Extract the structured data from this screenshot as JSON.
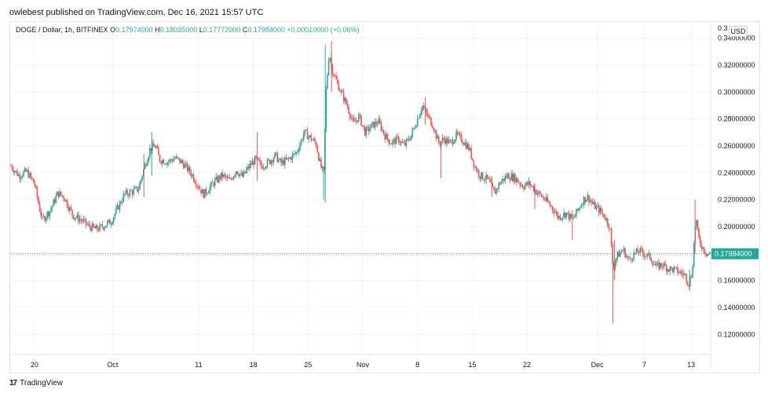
{
  "header": {
    "published": "owlebest published on TradingView.com, Dec 16, 2021 15:57 UTC"
  },
  "legend": {
    "symbol": "DOGE / Dollar, 1h, BITFINEX",
    "open_label": "O",
    "open": "0.17974000",
    "high_label": "H",
    "high": "0.18035000",
    "low_label": "L",
    "low": "0.17772000",
    "close_label": "C",
    "close": "0.17984000",
    "change": "+0.00010000 (+0.06%)"
  },
  "currency_button": "USD",
  "footer": {
    "logo_mark": "17",
    "logo_text": "TradingView"
  },
  "colors": {
    "up": "#26a69a",
    "down": "#ef5350",
    "grid": "#f0f3fa",
    "last_price": "#26a69a"
  },
  "chart_data": {
    "type": "candlestick",
    "title": "DOGE / Dollar, 1h, BITFINEX",
    "ylim": [
      0.105,
      0.352
    ],
    "y_ticks": [
      "0.12000000",
      "0.14000000",
      "0.16000000",
      "0.18000000",
      "0.20000000",
      "0.22000000",
      "0.24000000",
      "0.26000000",
      "0.28000000",
      "0.30000000",
      "0.32000000",
      "0.34000000"
    ],
    "y_ticks_truncated_top": "0.3",
    "x_range_days": [
      0,
      88
    ],
    "x_ticks": [
      {
        "label": "20",
        "day": 3
      },
      {
        "label": "Oct",
        "day": 13
      },
      {
        "label": "11",
        "day": 24
      },
      {
        "label": "18",
        "day": 31
      },
      {
        "label": "25",
        "day": 38
      },
      {
        "label": "Nov",
        "day": 45
      },
      {
        "label": "8",
        "day": 52
      },
      {
        "label": "15",
        "day": 59
      },
      {
        "label": "22",
        "day": 66
      },
      {
        "label": "Dec",
        "day": 75
      },
      {
        "label": "7",
        "day": 81
      },
      {
        "label": "13",
        "day": 87
      }
    ],
    "last_price": 0.17984,
    "last_price_label": "0.17984000",
    "x_origin_date": "2021-09-17",
    "series_close": [
      [
        0,
        0.245
      ],
      [
        1,
        0.238
      ],
      [
        2,
        0.241
      ],
      [
        3,
        0.232
      ],
      [
        3.6,
        0.215
      ],
      [
        4,
        0.205
      ],
      [
        5,
        0.212
      ],
      [
        6,
        0.225
      ],
      [
        6.8,
        0.222
      ],
      [
        7.5,
        0.213
      ],
      [
        8,
        0.208
      ],
      [
        9,
        0.205
      ],
      [
        10,
        0.2
      ],
      [
        11,
        0.198
      ],
      [
        12,
        0.201
      ],
      [
        12.8,
        0.204
      ],
      [
        13.5,
        0.212
      ],
      [
        14.5,
        0.224
      ],
      [
        15.5,
        0.226
      ],
      [
        16.3,
        0.228
      ],
      [
        17,
        0.243
      ],
      [
        17.8,
        0.258
      ],
      [
        18.5,
        0.26
      ],
      [
        19,
        0.25
      ],
      [
        20,
        0.248
      ],
      [
        21,
        0.251
      ],
      [
        22,
        0.247
      ],
      [
        23,
        0.24
      ],
      [
        23.8,
        0.232
      ],
      [
        24.6,
        0.224
      ],
      [
        25.3,
        0.228
      ],
      [
        26,
        0.233
      ],
      [
        27,
        0.238
      ],
      [
        28,
        0.234
      ],
      [
        28.8,
        0.242
      ],
      [
        29.6,
        0.237
      ],
      [
        30.5,
        0.245
      ],
      [
        31.3,
        0.25
      ],
      [
        32,
        0.245
      ],
      [
        33,
        0.248
      ],
      [
        33.8,
        0.253
      ],
      [
        34.5,
        0.247
      ],
      [
        35.5,
        0.25
      ],
      [
        36.5,
        0.255
      ],
      [
        37,
        0.262
      ],
      [
        37.5,
        0.27
      ],
      [
        38.3,
        0.266
      ],
      [
        39,
        0.262
      ],
      [
        39.6,
        0.245
      ],
      [
        40,
        0.239
      ],
      [
        40.3,
        0.3
      ],
      [
        40.7,
        0.33
      ],
      [
        41,
        0.318
      ],
      [
        41.5,
        0.31
      ],
      [
        42.2,
        0.3
      ],
      [
        43,
        0.29
      ],
      [
        43.8,
        0.276
      ],
      [
        44.5,
        0.282
      ],
      [
        45.3,
        0.27
      ],
      [
        46.2,
        0.275
      ],
      [
        47,
        0.278
      ],
      [
        47.8,
        0.268
      ],
      [
        48.6,
        0.262
      ],
      [
        49.5,
        0.265
      ],
      [
        50.3,
        0.26
      ],
      [
        51.2,
        0.268
      ],
      [
        52,
        0.28
      ],
      [
        52.6,
        0.29
      ],
      [
        53.2,
        0.283
      ],
      [
        54,
        0.275
      ],
      [
        54.7,
        0.262
      ],
      [
        55.4,
        0.265
      ],
      [
        56.2,
        0.262
      ],
      [
        57,
        0.268
      ],
      [
        57.8,
        0.264
      ],
      [
        58.6,
        0.258
      ],
      [
        59.3,
        0.245
      ],
      [
        60,
        0.238
      ],
      [
        61,
        0.235
      ],
      [
        61.8,
        0.225
      ],
      [
        62.6,
        0.233
      ],
      [
        63.5,
        0.238
      ],
      [
        64.5,
        0.236
      ],
      [
        65.5,
        0.23
      ],
      [
        66.3,
        0.232
      ],
      [
        67.2,
        0.226
      ],
      [
        68,
        0.222
      ],
      [
        68.8,
        0.217
      ],
      [
        69.5,
        0.212
      ],
      [
        70,
        0.207
      ],
      [
        71,
        0.21
      ],
      [
        71.8,
        0.205
      ],
      [
        72.5,
        0.212
      ],
      [
        73.2,
        0.22
      ],
      [
        73.8,
        0.222
      ],
      [
        74.5,
        0.216
      ],
      [
        75.3,
        0.212
      ],
      [
        76,
        0.207
      ],
      [
        76.6,
        0.2
      ],
      [
        77,
        0.17
      ],
      [
        77.5,
        0.178
      ],
      [
        78.3,
        0.183
      ],
      [
        79,
        0.175
      ],
      [
        79.6,
        0.179
      ],
      [
        80.3,
        0.182
      ],
      [
        81,
        0.18
      ],
      [
        81.8,
        0.177
      ],
      [
        82.5,
        0.17
      ],
      [
        83.3,
        0.172
      ],
      [
        84,
        0.169
      ],
      [
        84.8,
        0.168
      ],
      [
        85.6,
        0.166
      ],
      [
        86.2,
        0.164
      ],
      [
        86.7,
        0.158
      ],
      [
        87.1,
        0.165
      ],
      [
        87.4,
        0.19
      ],
      [
        87.6,
        0.208
      ],
      [
        87.9,
        0.192
      ],
      [
        88.4,
        0.185
      ],
      [
        89,
        0.18
      ],
      [
        89.5,
        0.1798
      ]
    ],
    "spikes": [
      {
        "day": 40.2,
        "low": 0.218,
        "high": 0.335
      },
      {
        "day": 41,
        "low": 0.3,
        "high": 0.338
      },
      {
        "day": 77,
        "low": 0.128,
        "high": 0.18
      },
      {
        "day": 87.5,
        "low": 0.18,
        "high": 0.22
      },
      {
        "day": 53,
        "low": 0.276,
        "high": 0.296
      },
      {
        "day": 18,
        "low": 0.238,
        "high": 0.27
      },
      {
        "day": 55,
        "low": 0.236,
        "high": 0.262
      },
      {
        "day": 77.2,
        "low": 0.16,
        "high": 0.19
      },
      {
        "day": 61.5,
        "low": 0.222,
        "high": 0.238
      },
      {
        "day": 40,
        "low": 0.22,
        "high": 0.245
      },
      {
        "day": 17,
        "low": 0.222,
        "high": 0.254
      },
      {
        "day": 31.5,
        "low": 0.234,
        "high": 0.27
      },
      {
        "day": 67,
        "low": 0.213,
        "high": 0.232
      },
      {
        "day": 71.8,
        "low": 0.19,
        "high": 0.212
      },
      {
        "day": 86.8,
        "low": 0.152,
        "high": 0.168
      }
    ]
  }
}
